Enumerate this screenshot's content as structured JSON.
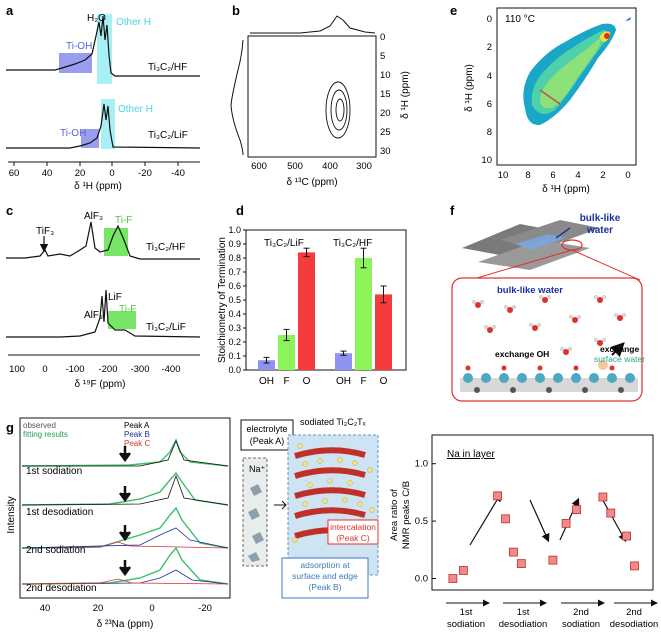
{
  "panels": {
    "a": {
      "letter": "a",
      "top_label": "Ti₃C₂/HF",
      "bottom_label": "Ti₃C₂/LiF",
      "h2o": "H₂O",
      "tioh_1": "Ti-OH",
      "otherh_1": "Other H",
      "tioh_2": "Ti-OH",
      "otherh_2": "Other H",
      "xlabel": "δ ¹H (ppm)",
      "ticks": [
        "60",
        "40",
        "20",
        "0",
        "-20",
        "-40"
      ]
    },
    "b": {
      "letter": "b",
      "xlabel": "δ ¹³C (ppm)",
      "ylabel": "δ ¹H (ppm)",
      "xticks": [
        "600",
        "500",
        "400",
        "300"
      ],
      "yticks": [
        "0",
        "5",
        "10",
        "15",
        "20",
        "25",
        "30"
      ]
    },
    "c": {
      "letter": "c",
      "tif3": "TiF₃",
      "alf3_top": "AlF₃",
      "tif_top": "Ti-F",
      "top_label": "Ti₃C₂/HF",
      "lif": "LiF",
      "alf3_bottom": "AlF₃",
      "tif_bottom": "Ti-F",
      "bottom_label": "Ti₃C₂/LiF",
      "xlabel": "δ ¹⁹F (ppm)",
      "ticks": [
        "100",
        "0",
        "-100",
        "-200",
        "-300",
        "-400"
      ]
    },
    "d": {
      "letter": "d",
      "ylabel": "Stoichiometry of Termination",
      "group1": "Ti₃C₂/LiF",
      "group2": "Ti₃C₂/HF",
      "categories": [
        "OH",
        "F",
        "O",
        "OH",
        "F",
        "O"
      ],
      "yticks": [
        "0.0",
        "0.1",
        "0.2",
        "0.3",
        "0.4",
        "0.5",
        "0.6",
        "0.7",
        "0.8",
        "0.9",
        "1.0"
      ]
    },
    "e": {
      "letter": "e",
      "temp": "110 °C",
      "xlabel": "δ ¹H (ppm)",
      "ylabel": "δ ¹H (ppm)",
      "xticks": [
        "10",
        "8",
        "6",
        "4",
        "2",
        "0"
      ],
      "yticks": [
        "0",
        "2",
        "4",
        "6",
        "8",
        "10"
      ]
    },
    "f": {
      "letter": "f",
      "bulk_top": "bulk-like",
      "bulk_top2": "water",
      "bulk_inset": "bulk-like water",
      "exchange_oh": "exchange OH",
      "exchange": "exchange",
      "surface_water": "surface water"
    },
    "g": {
      "letter": "g",
      "legend": [
        "observed",
        "fitting results",
        "Peak A",
        "Peak B",
        "Peak C"
      ],
      "traces": [
        "1st sodiation",
        "1st desodiation",
        "2nd sodiation",
        "2nd desodiation"
      ],
      "ylabel": "Intensity",
      "xlabel": "δ ²³Na (ppm)",
      "xticks": [
        "40",
        "20",
        "0",
        "-20"
      ],
      "electrolyte": "electrolyte",
      "peak_a": "(Peak A)",
      "sodiated": "sodiated Ti₃C₂Tₓ",
      "na_plus": "Na⁺",
      "intercalation": "intercalation",
      "peak_c": "(Peak C)",
      "adsorption1": "adsorption at",
      "adsorption2": "surface and edge",
      "peak_b": "(Peak B)",
      "inlayer": "Na in layer",
      "ylabel2a": "Area ratio of",
      "ylabel2b": "NMR peaks C/B",
      "yticks2": [
        "0.0",
        "0.5",
        "1.0"
      ],
      "xcats": [
        "1st\nsodiation",
        "1st\ndesodiation",
        "2nd\nsodiation",
        "2nd\ndesodiation"
      ]
    }
  },
  "chart_data": [
    {
      "type": "bar",
      "panel": "d",
      "title": "",
      "ylabel": "Stoichiometry of Termination",
      "ylim": [
        0,
        1.0
      ],
      "categories": [
        "OH",
        "F",
        "O",
        "OH",
        "F",
        "O"
      ],
      "groups": [
        {
          "name": "Ti₃C₂/LiF",
          "values": [
            0.07,
            0.25,
            0.84
          ],
          "errors": [
            0.02,
            0.04,
            0.03
          ]
        },
        {
          "name": "Ti₃C₂/HF",
          "values": [
            0.12,
            0.8,
            0.54
          ],
          "errors": [
            0.015,
            0.07,
            0.06
          ]
        }
      ],
      "colors": [
        "#8f92f0",
        "#8ef25a",
        "#f53b3b"
      ]
    },
    {
      "type": "scatter",
      "panel": "g-right",
      "title": "Na in layer",
      "ylabel": "Area ratio of NMR peaks C/B",
      "ylim": [
        -0.1,
        1.25
      ],
      "points": [
        {
          "x": 0.15,
          "y": 0.0
        },
        {
          "x": 0.35,
          "y": 0.07
        },
        {
          "x": 1.0,
          "y": 0.72
        },
        {
          "x": 1.15,
          "y": 0.52
        },
        {
          "x": 1.3,
          "y": 0.23
        },
        {
          "x": 1.45,
          "y": 0.13
        },
        {
          "x": 2.05,
          "y": 0.16
        },
        {
          "x": 2.3,
          "y": 0.48
        },
        {
          "x": 2.5,
          "y": 0.6
        },
        {
          "x": 3.0,
          "y": 0.71
        },
        {
          "x": 3.15,
          "y": 0.57
        },
        {
          "x": 3.45,
          "y": 0.37
        },
        {
          "x": 3.6,
          "y": 0.11
        }
      ],
      "categories": [
        "1st sodiation",
        "1st desodiation",
        "2nd sodiation",
        "2nd desodiation"
      ]
    }
  ]
}
